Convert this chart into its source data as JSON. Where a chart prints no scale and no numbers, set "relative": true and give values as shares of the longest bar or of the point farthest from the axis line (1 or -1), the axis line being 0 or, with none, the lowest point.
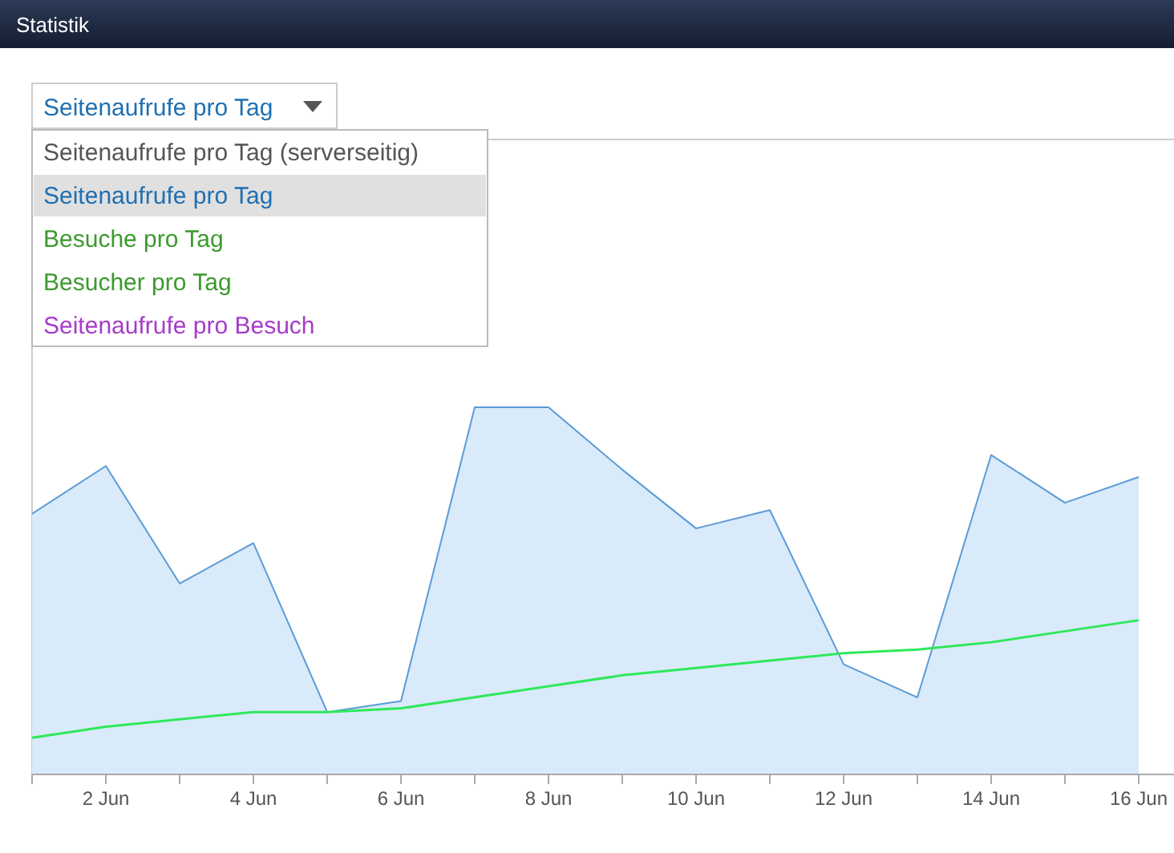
{
  "chart_data": {
    "type": "area",
    "title": "Statistik",
    "categories": [
      null,
      "2 Jun",
      null,
      "4 Jun",
      null,
      "6 Jun",
      null,
      "8 Jun",
      null,
      "10 Jun",
      null,
      "12 Jun",
      null,
      "14 Jun",
      null,
      "16 Jun"
    ],
    "relative": true,
    "series": [
      {
        "color": "#5b9bd5",
        "values": [
          0.71,
          0.84,
          0.52,
          0.63,
          0.17,
          0.2,
          1.0,
          1.0,
          0.83,
          0.67,
          0.72,
          0.3,
          0.21,
          0.87,
          0.74,
          0.81
        ]
      },
      {
        "type": "line",
        "color": "#2ee85a",
        "values": [
          0.1,
          0.13,
          0.15,
          0.17,
          0.17,
          0.18,
          0.21,
          0.24,
          0.27,
          0.29,
          0.31,
          0.33,
          0.34,
          0.36,
          0.39,
          0.42
        ]
      }
    ],
    "annotations": [
      "Seitenaufrufe pro Tag",
      "Seitenaufrufe pro Tag (serverseitig)",
      "Seitenaufrufe pro Tag",
      "Besuche pro Tag",
      "Besucher pro Tag",
      "Seitenaufrufe pro Besuch"
    ]
  }
}
